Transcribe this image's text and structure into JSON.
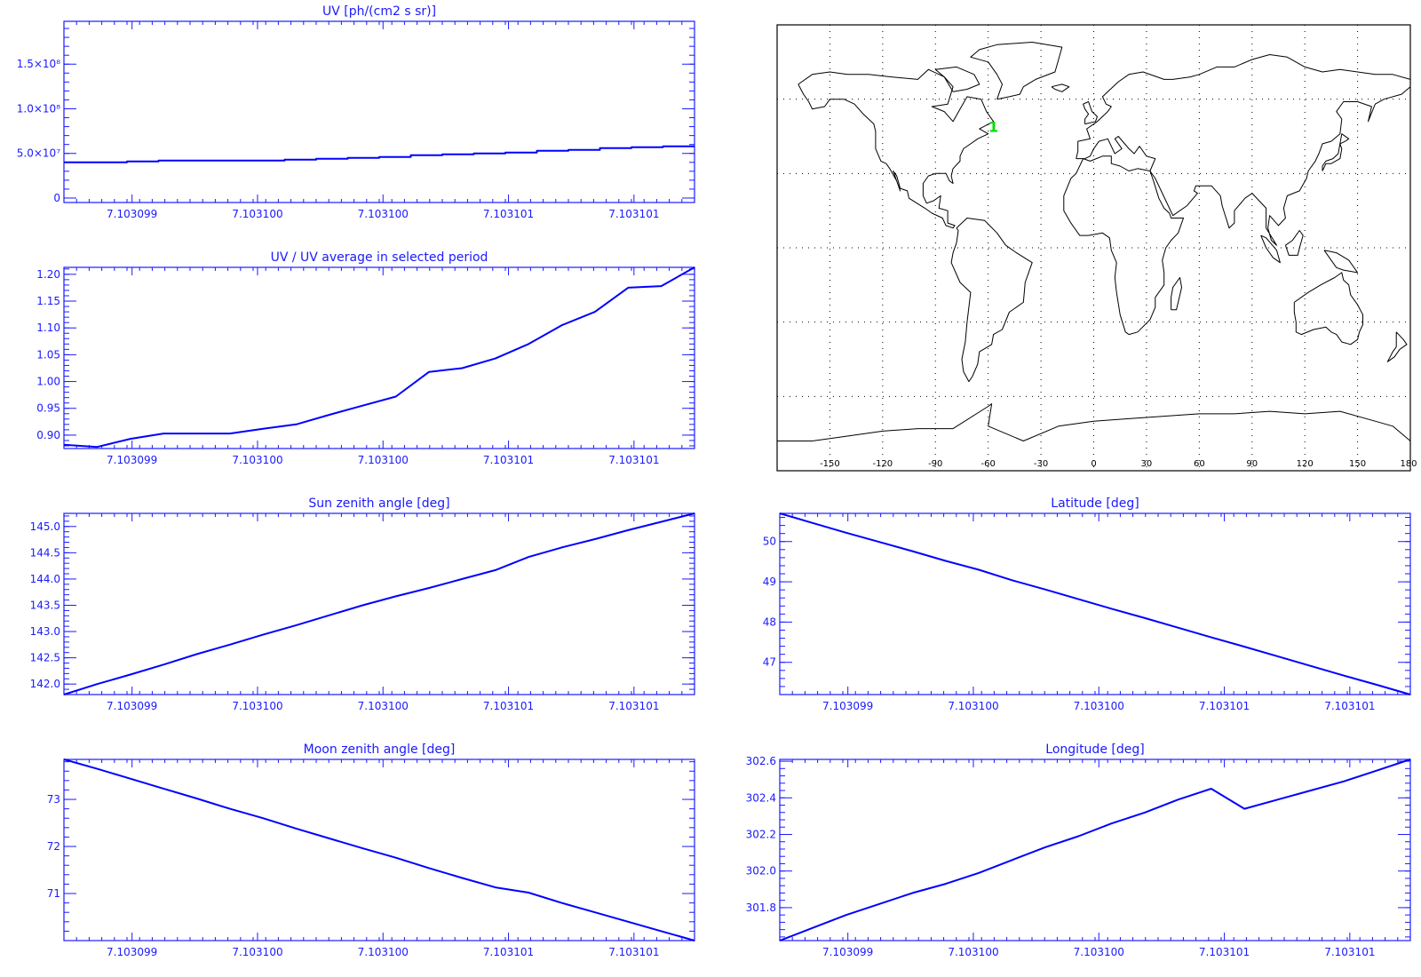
{
  "colors": {
    "axis": "#1a1aff",
    "line": "#0000ff",
    "map": "#000000",
    "marker": "#00dd00"
  },
  "map": {
    "lon_ticks": [
      "-150",
      "-120",
      "-90",
      "-60",
      "-30",
      "0",
      "30",
      "60",
      "90",
      "120",
      "150",
      "180"
    ],
    "grid": "dotted",
    "marker_label": "1",
    "marker_lonlat": [
      -57,
      49
    ]
  },
  "chart_data": [
    {
      "type": "line",
      "title": "UV [ph/(cm2 s sr)]",
      "x_tick_labels": [
        "7.103099",
        "7.103100",
        "7.103100",
        "7.103101",
        "7.103101"
      ],
      "y_tick_labels": [
        "0",
        "5.0×10⁷",
        "1.0×10⁸",
        "1.5×10⁸"
      ],
      "y_tick_values": [
        0,
        50000000.0,
        100000000.0,
        150000000.0
      ],
      "ylim": [
        -5000000.0,
        198000000.0
      ],
      "step": true,
      "y": [
        40000000.0,
        40000000.0,
        41000000.0,
        42000000.0,
        42000000.0,
        42000000.0,
        42000000.0,
        43000000.0,
        44000000.0,
        45000000.0,
        46000000.0,
        48000000.0,
        49000000.0,
        50000000.0,
        51000000.0,
        53000000.0,
        54000000.0,
        56000000.0,
        57000000.0,
        58000000.0
      ]
    },
    {
      "type": "line",
      "title": "UV / UV average in selected period",
      "x_tick_labels": [
        "7.103099",
        "7.103100",
        "7.103100",
        "7.103101",
        "7.103101"
      ],
      "y_tick_labels": [
        "0.90",
        "0.95",
        "1.00",
        "1.05",
        "1.10",
        "1.15",
        "1.20"
      ],
      "y_tick_values": [
        0.9,
        0.95,
        1.0,
        1.05,
        1.1,
        1.15,
        1.2
      ],
      "ylim": [
        0.875,
        1.213
      ],
      "y": [
        0.882,
        0.878,
        0.893,
        0.903,
        0.903,
        0.903,
        0.912,
        0.92,
        0.938,
        0.955,
        0.972,
        1.018,
        1.025,
        1.043,
        1.07,
        1.105,
        1.13,
        1.175,
        1.178,
        1.213
      ]
    },
    {
      "type": "line",
      "title": "Sun zenith angle [deg]",
      "x_tick_labels": [
        "7.103099",
        "7.103100",
        "7.103100",
        "7.103101",
        "7.103101"
      ],
      "y_tick_labels": [
        "142.0",
        "142.5",
        "143.0",
        "143.5",
        "144.0",
        "144.5",
        "145.0"
      ],
      "y_tick_values": [
        142.0,
        142.5,
        143.0,
        143.5,
        144.0,
        144.5,
        145.0
      ],
      "ylim": [
        141.8,
        145.25
      ],
      "y": [
        141.8,
        142.0,
        142.18,
        142.37,
        142.57,
        142.75,
        142.94,
        143.12,
        143.31,
        143.5,
        143.67,
        143.83,
        144.0,
        144.17,
        144.42,
        144.6,
        144.76,
        144.93,
        145.09,
        145.25
      ]
    },
    {
      "type": "line",
      "title": "Latitude [deg]",
      "x_tick_labels": [
        "7.103099",
        "7.103100",
        "7.103100",
        "7.103101",
        "7.103101"
      ],
      "y_tick_labels": [
        "47",
        "48",
        "49",
        "50"
      ],
      "y_tick_values": [
        47,
        48,
        49,
        50
      ],
      "ylim": [
        46.2,
        50.7
      ],
      "y": [
        50.7,
        50.46,
        50.22,
        49.99,
        49.76,
        49.52,
        49.3,
        49.04,
        48.81,
        48.57,
        48.33,
        48.1,
        47.86,
        47.62,
        47.39,
        47.15,
        46.91,
        46.67,
        46.44,
        46.2
      ]
    },
    {
      "type": "line",
      "title": "Moon zenith angle [deg]",
      "x_tick_labels": [
        "7.103099",
        "7.103100",
        "7.103100",
        "7.103101",
        "7.103101"
      ],
      "y_tick_labels": [
        "71",
        "72",
        "73"
      ],
      "y_tick_values": [
        71,
        72,
        73
      ],
      "ylim": [
        70.0,
        73.85
      ],
      "y": [
        73.85,
        73.65,
        73.44,
        73.23,
        73.02,
        72.8,
        72.6,
        72.38,
        72.17,
        71.96,
        71.76,
        71.54,
        71.33,
        71.13,
        71.02,
        70.8,
        70.6,
        70.4,
        70.2,
        70.0
      ]
    },
    {
      "type": "line",
      "title": "Longitude [deg]",
      "x_tick_labels": [
        "7.103099",
        "7.103100",
        "7.103100",
        "7.103101",
        "7.103101"
      ],
      "y_tick_labels": [
        "301.8",
        "302.0",
        "302.2",
        "302.4",
        "302.6"
      ],
      "y_tick_values": [
        301.8,
        302.0,
        302.2,
        302.4,
        302.6
      ],
      "ylim": [
        301.62,
        302.61
      ],
      "y": [
        301.62,
        301.69,
        301.76,
        301.82,
        301.88,
        301.93,
        301.99,
        302.06,
        302.13,
        302.19,
        302.26,
        302.32,
        302.39,
        302.45,
        302.34,
        302.39,
        302.44,
        302.49,
        302.55,
        302.61
      ]
    }
  ]
}
